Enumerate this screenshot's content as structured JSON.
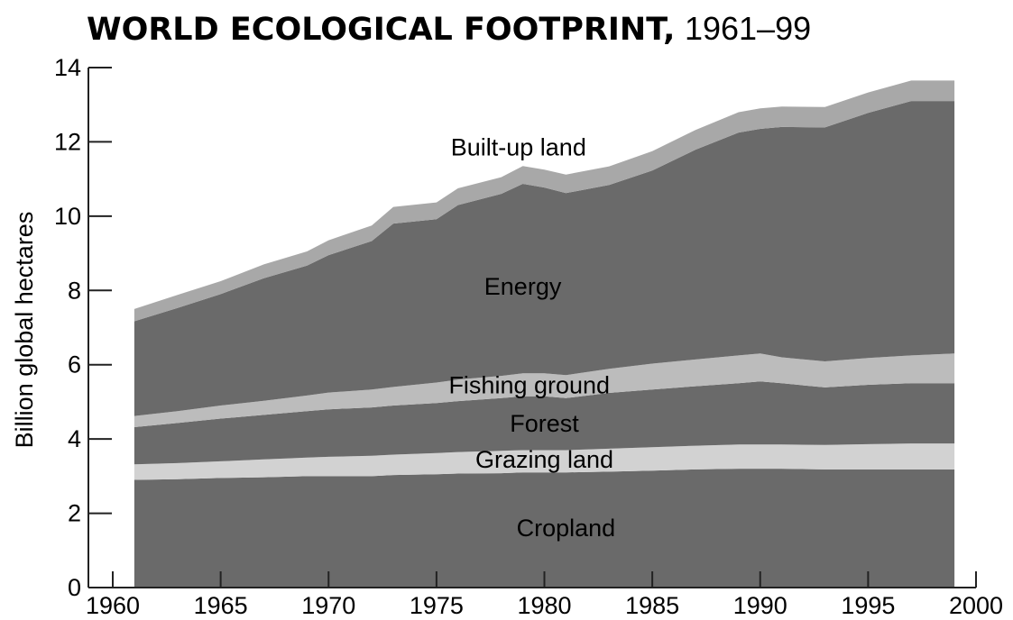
{
  "title": {
    "main": "WORLD ECOLOGICAL FOOTPRINT,",
    "years": "1961–99"
  },
  "chart_data": {
    "type": "area",
    "stacked": true,
    "title": "WORLD ECOLOGICAL FOOTPRINT, 1961–99",
    "xlabel": "",
    "ylabel": "Billion global hectares",
    "xlim": [
      1958,
      2000
    ],
    "ylim": [
      0,
      14
    ],
    "grid": false,
    "legend": "labels inside areas",
    "x_ticks": [
      "1960",
      "1965",
      "1970",
      "1975",
      "1980",
      "1985",
      "1990",
      "1995",
      "2000"
    ],
    "y_ticks": [
      "0",
      "2",
      "4",
      "6",
      "8",
      "10",
      "12",
      "14"
    ],
    "x": [
      1961,
      1963,
      1965,
      1967,
      1969,
      1970,
      1972,
      1973,
      1975,
      1976,
      1978,
      1979,
      1980,
      1981,
      1983,
      1985,
      1987,
      1989,
      1990,
      1991,
      1993,
      1995,
      1997,
      1999
    ],
    "series": [
      {
        "name": "Cropland",
        "color": "#6a6a6a",
        "values": [
          2.9,
          2.92,
          2.95,
          2.97,
          3.0,
          3.0,
          3.0,
          3.03,
          3.05,
          3.07,
          3.08,
          3.1,
          3.1,
          3.1,
          3.12,
          3.15,
          3.18,
          3.2,
          3.2,
          3.2,
          3.18,
          3.18,
          3.18,
          3.18
        ]
      },
      {
        "name": "Grazing land",
        "color": "#d2d2d2",
        "values": [
          0.42,
          0.43,
          0.45,
          0.48,
          0.5,
          0.52,
          0.55,
          0.55,
          0.57,
          0.58,
          0.6,
          0.6,
          0.6,
          0.6,
          0.62,
          0.63,
          0.64,
          0.65,
          0.65,
          0.65,
          0.66,
          0.68,
          0.7,
          0.7
        ]
      },
      {
        "name": "Forest",
        "color": "#6a6a6a",
        "values": [
          1.0,
          1.08,
          1.15,
          1.2,
          1.25,
          1.28,
          1.3,
          1.32,
          1.35,
          1.37,
          1.42,
          1.45,
          1.45,
          1.4,
          1.5,
          1.55,
          1.6,
          1.65,
          1.7,
          1.65,
          1.55,
          1.6,
          1.62,
          1.62
        ]
      },
      {
        "name": "Fishing ground",
        "color": "#bcbcbc",
        "values": [
          0.3,
          0.32,
          0.35,
          0.38,
          0.42,
          0.45,
          0.48,
          0.5,
          0.55,
          0.58,
          0.6,
          0.62,
          0.62,
          0.62,
          0.65,
          0.7,
          0.72,
          0.75,
          0.75,
          0.7,
          0.7,
          0.72,
          0.75,
          0.8
        ]
      },
      {
        "name": "Energy",
        "color": "#6a6a6a",
        "values": [
          2.55,
          2.78,
          3.0,
          3.3,
          3.5,
          3.7,
          4.0,
          4.4,
          4.4,
          4.7,
          4.9,
          5.1,
          5.0,
          4.9,
          4.95,
          5.2,
          5.65,
          6.0,
          6.05,
          6.2,
          6.3,
          6.6,
          6.85,
          6.8
        ]
      },
      {
        "name": "Built-up land",
        "color": "#a8a8a8",
        "values": [
          0.33,
          0.35,
          0.35,
          0.37,
          0.38,
          0.4,
          0.42,
          0.45,
          0.45,
          0.45,
          0.45,
          0.48,
          0.48,
          0.5,
          0.5,
          0.52,
          0.53,
          0.55,
          0.55,
          0.55,
          0.55,
          0.55,
          0.55,
          0.55
        ]
      }
    ]
  }
}
